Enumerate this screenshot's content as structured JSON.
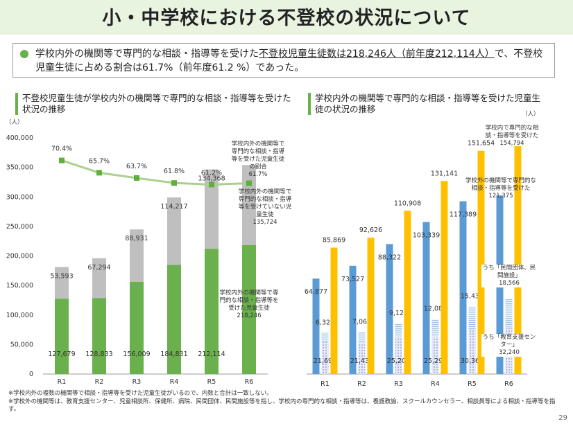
{
  "header": {
    "title": "小・中学校における不登校の状況について"
  },
  "summary": {
    "parts": [
      "学校内外の機関等で専門的な相談・指導等を受けた",
      "不登校児童生徒数は218,246人（前年度212,114人）",
      "で、不登校児童生徒に占める割合は61.7%（前年度61.2 %）であった。"
    ]
  },
  "chart_data": [
    {
      "type": "bar",
      "stacked": true,
      "title": "不登校児童生徒が学校内外の機関等で専門的な相談・指導等を受けた状況の推移",
      "unit": "（人）",
      "categories": [
        "R1",
        "R2",
        "R3",
        "R4",
        "R5",
        "R6"
      ],
      "series": [
        {
          "name": "学校内外の機関等で専門的な相談・指導等を受けた児童生徒",
          "color": "#6ab04c",
          "values": [
            127679,
            128833,
            156009,
            184831,
            212114,
            218246
          ],
          "value_labels": [
            "127,679",
            "128,833",
            "156,009",
            "184,831",
            "212,114",
            "218,246"
          ]
        },
        {
          "name": "学校内外の機関等で専門的な相談・指導等を受けていない児童生徒",
          "color": "#bfbfbf",
          "values": [
            53593,
            67294,
            88931,
            114217,
            134368,
            135724
          ],
          "value_labels": [
            "53,593",
            "67,294",
            "88,931",
            "114,217",
            "134,368",
            "135,724"
          ]
        },
        {
          "name": "学校内外の機関等で専門的な相談・指導等を受けた児童生徒の割合",
          "type": "line",
          "axis": "y2",
          "color": "#a9d18e",
          "values": [
            70.4,
            65.7,
            63.7,
            61.8,
            61.2,
            61.7
          ],
          "value_labels": [
            "70.4%",
            "65.7%",
            "63.7%",
            "61.8%",
            "61.2%",
            "61.7%"
          ]
        }
      ],
      "ylim": [
        0,
        400000
      ],
      "yticks": [
        0,
        {
          "value": 50000,
          "label": "50,000"
        },
        {
          "value": 100000,
          "label": "100,000"
        },
        {
          "value": 150000,
          "label": "150,000"
        },
        {
          "value": 200000,
          "label": "200,000"
        },
        {
          "value": 250000,
          "label": "250,000"
        },
        {
          "value": 300000,
          "label": "300,000"
        },
        {
          "value": 350000,
          "label": "350,000"
        },
        {
          "value": 400000,
          "label": "400,000"
        }
      ],
      "y2lim": [
        -11,
        79
      ]
    },
    {
      "type": "bar",
      "title": "学校内外の機関等で専門的な相談・指導等を受けた児童生徒の状況の推移",
      "unit": "（人）",
      "categories": [
        "R1",
        "R2",
        "R3",
        "R4",
        "R5",
        "R6"
      ],
      "series": [
        {
          "name": "学校外の機関等で専門的な相談・指導等を受けた",
          "color": "#5b9bd5",
          "values": [
            64877,
            73527,
            88322,
            103339,
            117389,
            121375
          ],
          "value_labels": [
            "64,877",
            "73,527",
            "88,322",
            "103,339",
            "117,389",
            "121,375"
          ]
        },
        {
          "name": "うち「教育支援センター」",
          "color": "#9fa8e0",
          "values": [
            21695,
            21436,
            25209,
            25292,
            30365,
            32240
          ],
          "value_labels": [
            "21,695",
            "21,436",
            "25,209",
            "25,292",
            "30,365",
            "32,240"
          ]
        },
        {
          "name": "うち「民間団体、民間施設」",
          "color": "#9dc3e6",
          "values": [
            6328,
            7066,
            9129,
            12089,
            15431,
            18566
          ],
          "value_labels": [
            "6,328",
            "7,066",
            "9,129",
            "12,089",
            "15,431",
            "18,566"
          ]
        },
        {
          "name": "学校内で専門的な相談・指導等を受けた",
          "color": "#ffc000",
          "values": [
            85869,
            92626,
            110908,
            131141,
            151654,
            154794
          ],
          "value_labels": [
            "85,869",
            "92,626",
            "110,908",
            "131,141",
            "151,654",
            "154,794"
          ]
        }
      ],
      "ylim": [
        0,
        160000
      ]
    }
  ],
  "notes": [
    "※学校内外の複数の機関等で相談・指導等を受けた児童生徒がいるので、内数と合計は一致しない。",
    "※学校外の機関等は、教育支援センター、児童相談所、保健所、病院、民間団体、民間施設等を指し、学校内の専門的な相談・指導等は、養護教諭、スクールカウンセラー、相談員等による相談・指導等を指す。"
  ],
  "page_number": 29
}
